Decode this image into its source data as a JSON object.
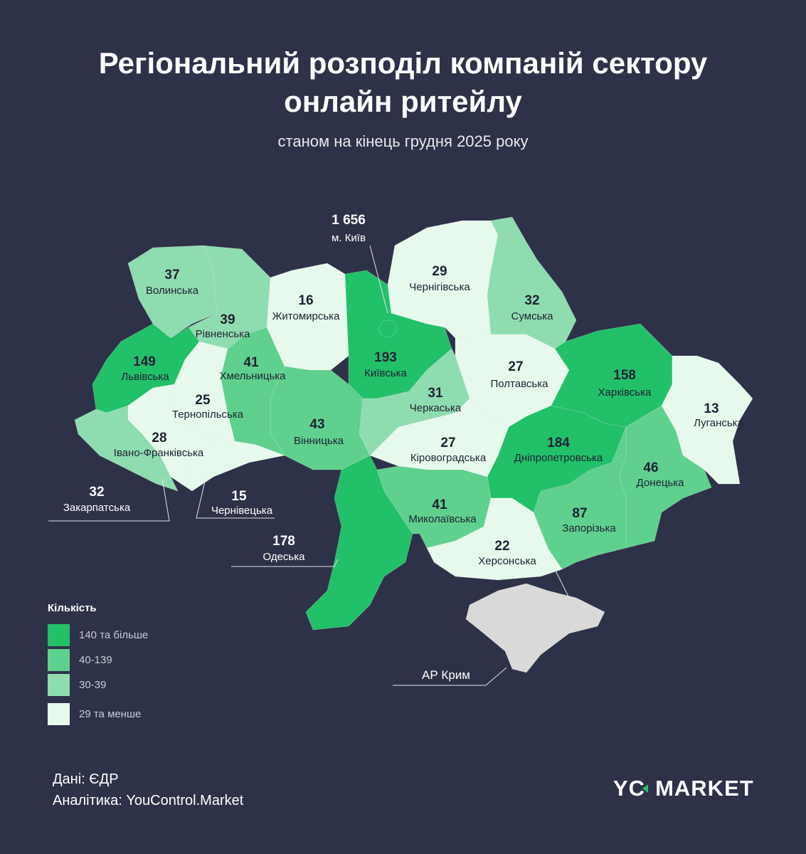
{
  "title_line1": "Регіональний розподіл компаній сектору",
  "title_line2": "онлайн ритейлу",
  "subtitle": "станом на кінець грудня 2025 року",
  "colors": {
    "background": "#2e3248",
    "tier1": "#22c069",
    "tier2": "#5fd08e",
    "tier3": "#8fdcb0",
    "tier4": "#e6f9ec",
    "no_data": "#d9d9d9"
  },
  "regions": {
    "volynska": {
      "name": "Волинська",
      "value": 37
    },
    "rivnenska": {
      "name": "Рівненська",
      "value": 39
    },
    "zhytomyrska": {
      "name": "Житомирська",
      "value": 16
    },
    "kyivska": {
      "name": "Київська",
      "value": 193
    },
    "chernihivska": {
      "name": "Чернігівська",
      "value": 29
    },
    "sumska": {
      "name": "Сумська",
      "value": 32
    },
    "poltavska": {
      "name": "Полтавська",
      "value": 27
    },
    "kharkivska": {
      "name": "Харківська",
      "value": 158
    },
    "luhanska": {
      "name": "Луганська",
      "value": 13
    },
    "donetska": {
      "name": "Донецька",
      "value": 46
    },
    "zaporizka": {
      "name": "Запорізька",
      "value": 87
    },
    "dnipropetrovska": {
      "name": "Дніпропетровська",
      "value": 184
    },
    "kirovohradska": {
      "name": "Кіровоградська",
      "value": 27
    },
    "cherkaska": {
      "name": "Черкаська",
      "value": 31
    },
    "vinnytska": {
      "name": "Вінницька",
      "value": 43
    },
    "khmelnytska": {
      "name": "Хмельницька",
      "value": 41
    },
    "ternopilska": {
      "name": "Тернопільська",
      "value": 25
    },
    "lvivska": {
      "name": "Львівська",
      "value": 149
    },
    "ivanofrankivska": {
      "name": "Івано-Франківська",
      "value": 28
    },
    "zakarpatska": {
      "name": "Закарпатська",
      "value": 32
    },
    "chernivetska": {
      "name": "Чернівецька",
      "value": 15
    },
    "odeska": {
      "name": "Одеська",
      "value": 178
    },
    "mykolaivska": {
      "name": "Миколаївська",
      "value": 41
    },
    "khersonska": {
      "name": "Херсонська",
      "value": 22
    },
    "kyiv_city": {
      "name": "м. Київ",
      "value": "1 656"
    },
    "crimea": {
      "name": "АР Крим"
    }
  },
  "legend": {
    "title": "Кількість",
    "items": [
      {
        "label": "140 та більше",
        "min": 140
      },
      {
        "label": "40-139",
        "min": 40
      },
      {
        "label": "30-39",
        "min": 30
      },
      {
        "label": "29 та менше",
        "min": 0
      }
    ]
  },
  "footer": {
    "source": "Дані: ЄДР",
    "analytics": "Аналітика: YouControl.Market"
  },
  "logo": {
    "left": "YC",
    "right": "MARKET"
  }
}
